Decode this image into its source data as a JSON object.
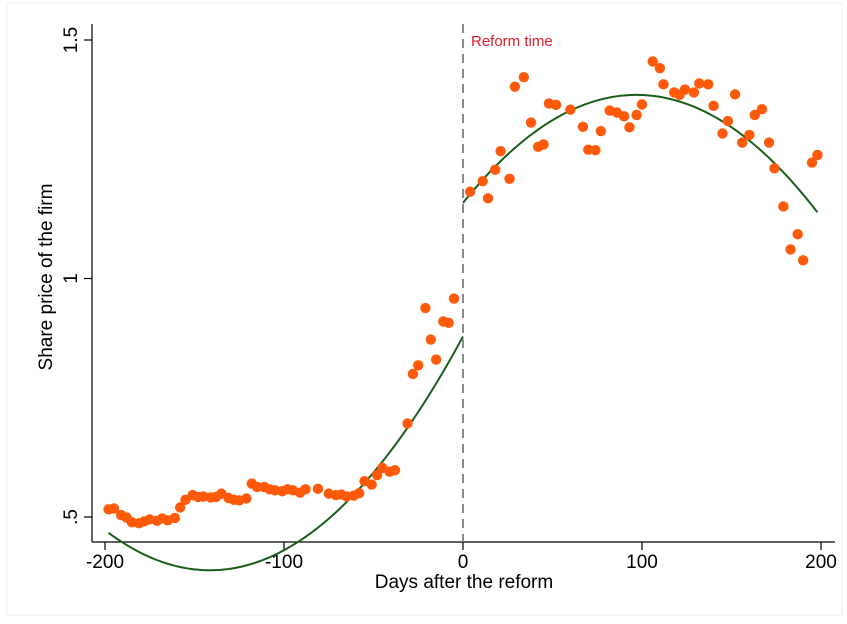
{
  "chart_data": {
    "type": "scatter",
    "title": "",
    "xlabel": "Days after the reform",
    "ylabel": "Share price of the firm",
    "xlim": [
      -200,
      200
    ],
    "ylim": [
      0.5,
      1.5
    ],
    "xticks": [
      -200,
      -100,
      0,
      100,
      200
    ],
    "xtick_labels": [
      "-200",
      "-100",
      "0",
      "100",
      "200"
    ],
    "yticks": [
      0.5,
      1,
      1.5
    ],
    "ytick_labels": [
      ".5",
      "1",
      "1.5"
    ],
    "grid": false,
    "legend": "none",
    "marker_color": "#ff5a0a",
    "fit_color": "#1a5e1a",
    "reform_line_color": "#8a8a8a",
    "annotation": {
      "text": "Reform time",
      "x": 0,
      "color": "#e8192c"
    },
    "scatter_points": [
      {
        "x": -198,
        "y": 0.516
      },
      {
        "x": -195,
        "y": 0.518
      },
      {
        "x": -191,
        "y": 0.504
      },
      {
        "x": -188,
        "y": 0.499
      },
      {
        "x": -185,
        "y": 0.489
      },
      {
        "x": -181,
        "y": 0.487
      },
      {
        "x": -178,
        "y": 0.491
      },
      {
        "x": -175,
        "y": 0.495
      },
      {
        "x": -171,
        "y": 0.492
      },
      {
        "x": -168,
        "y": 0.497
      },
      {
        "x": -165,
        "y": 0.493
      },
      {
        "x": -161,
        "y": 0.498
      },
      {
        "x": -158,
        "y": 0.52
      },
      {
        "x": -155,
        "y": 0.536
      },
      {
        "x": -151,
        "y": 0.546
      },
      {
        "x": -148,
        "y": 0.542
      },
      {
        "x": -145,
        "y": 0.543
      },
      {
        "x": -141,
        "y": 0.541
      },
      {
        "x": -138,
        "y": 0.542
      },
      {
        "x": -135,
        "y": 0.549
      },
      {
        "x": -131,
        "y": 0.54
      },
      {
        "x": -128,
        "y": 0.536
      },
      {
        "x": -125,
        "y": 0.535
      },
      {
        "x": -121,
        "y": 0.539
      },
      {
        "x": -118,
        "y": 0.57
      },
      {
        "x": -115,
        "y": 0.563
      },
      {
        "x": -111,
        "y": 0.563
      },
      {
        "x": -108,
        "y": 0.558
      },
      {
        "x": -105,
        "y": 0.556
      },
      {
        "x": -101,
        "y": 0.554
      },
      {
        "x": -98,
        "y": 0.558
      },
      {
        "x": -95,
        "y": 0.556
      },
      {
        "x": -91,
        "y": 0.551
      },
      {
        "x": -88,
        "y": 0.558
      },
      {
        "x": -81,
        "y": 0.559
      },
      {
        "x": -75,
        "y": 0.549
      },
      {
        "x": -71,
        "y": 0.546
      },
      {
        "x": -68,
        "y": 0.547
      },
      {
        "x": -65,
        "y": 0.543
      },
      {
        "x": -61,
        "y": 0.545
      },
      {
        "x": -58,
        "y": 0.55
      },
      {
        "x": -55,
        "y": 0.575
      },
      {
        "x": -51,
        "y": 0.568
      },
      {
        "x": -48,
        "y": 0.588
      },
      {
        "x": -45,
        "y": 0.603
      },
      {
        "x": -41,
        "y": 0.595
      },
      {
        "x": -38,
        "y": 0.598
      },
      {
        "x": -31,
        "y": 0.696
      },
      {
        "x": -28,
        "y": 0.8
      },
      {
        "x": -25,
        "y": 0.818
      },
      {
        "x": -21,
        "y": 0.938
      },
      {
        "x": -18,
        "y": 0.872
      },
      {
        "x": -15,
        "y": 0.83
      },
      {
        "x": -11,
        "y": 0.91
      },
      {
        "x": -8,
        "y": 0.907
      },
      {
        "x": -5,
        "y": 0.958
      },
      {
        "x": 4,
        "y": 1.182
      },
      {
        "x": 11,
        "y": 1.204
      },
      {
        "x": 14,
        "y": 1.168
      },
      {
        "x": 18,
        "y": 1.228
      },
      {
        "x": 21,
        "y": 1.267
      },
      {
        "x": 26,
        "y": 1.209
      },
      {
        "x": 29,
        "y": 1.402
      },
      {
        "x": 34,
        "y": 1.422
      },
      {
        "x": 38,
        "y": 1.327
      },
      {
        "x": 42,
        "y": 1.276
      },
      {
        "x": 45,
        "y": 1.281
      },
      {
        "x": 48,
        "y": 1.367
      },
      {
        "x": 52,
        "y": 1.364
      },
      {
        "x": 60,
        "y": 1.354
      },
      {
        "x": 67,
        "y": 1.318
      },
      {
        "x": 70,
        "y": 1.27
      },
      {
        "x": 74,
        "y": 1.269
      },
      {
        "x": 77,
        "y": 1.309
      },
      {
        "x": 82,
        "y": 1.352
      },
      {
        "x": 86,
        "y": 1.348
      },
      {
        "x": 90,
        "y": 1.34
      },
      {
        "x": 93,
        "y": 1.317
      },
      {
        "x": 97,
        "y": 1.343
      },
      {
        "x": 100,
        "y": 1.365
      },
      {
        "x": 106,
        "y": 1.455
      },
      {
        "x": 110,
        "y": 1.441
      },
      {
        "x": 112,
        "y": 1.407
      },
      {
        "x": 118,
        "y": 1.39
      },
      {
        "x": 121,
        "y": 1.385
      },
      {
        "x": 124,
        "y": 1.396
      },
      {
        "x": 129,
        "y": 1.39
      },
      {
        "x": 132,
        "y": 1.409
      },
      {
        "x": 137,
        "y": 1.407
      },
      {
        "x": 140,
        "y": 1.362
      },
      {
        "x": 145,
        "y": 1.304
      },
      {
        "x": 148,
        "y": 1.33
      },
      {
        "x": 152,
        "y": 1.386
      },
      {
        "x": 156,
        "y": 1.285
      },
      {
        "x": 160,
        "y": 1.301
      },
      {
        "x": 163,
        "y": 1.343
      },
      {
        "x": 167,
        "y": 1.355
      },
      {
        "x": 171,
        "y": 1.285
      },
      {
        "x": 174,
        "y": 1.231
      },
      {
        "x": 179,
        "y": 1.151
      },
      {
        "x": 183,
        "y": 1.061
      },
      {
        "x": 187,
        "y": 1.093
      },
      {
        "x": 190,
        "y": 1.038
      },
      {
        "x": 195,
        "y": 1.243
      },
      {
        "x": 198,
        "y": 1.259
      }
    ],
    "fit_lines": [
      {
        "side": "before",
        "x_range": [
          -198,
          0
        ],
        "coef": [
          0.8784,
          0.00693,
          2.45e-05
        ]
      },
      {
        "side": "after",
        "x_range": [
          0,
          198
        ],
        "coef": [
          1.1585,
          0.004672,
          -2.41e-05
        ]
      }
    ]
  }
}
